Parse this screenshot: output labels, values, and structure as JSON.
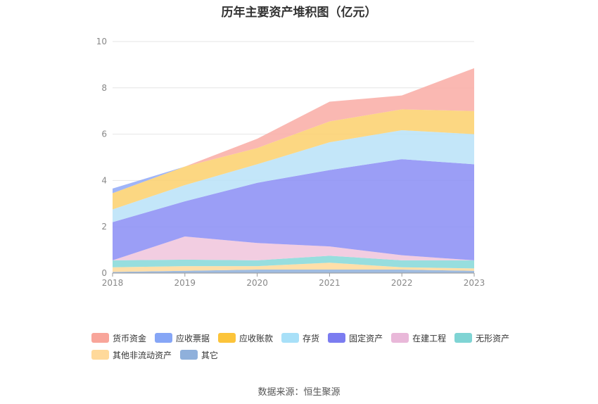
{
  "chart_data": {
    "type": "area",
    "stacked": true,
    "title": "历年主要资产堆积图（亿元）",
    "x": [
      "2018",
      "2019",
      "2020",
      "2021",
      "2022",
      "2023"
    ],
    "ylim": [
      0,
      10
    ],
    "yticks": [
      "0",
      "2",
      "4",
      "6",
      "8",
      "10"
    ],
    "grid": true,
    "legend_position": "bottom",
    "series": [
      {
        "name": "其它",
        "color": "#8fb0db",
        "values": [
          0.05,
          0.1,
          0.15,
          0.15,
          0.15,
          0.1
        ]
      },
      {
        "name": "其他非流动资产",
        "color": "#ffd99a",
        "values": [
          0.2,
          0.2,
          0.15,
          0.3,
          0.1,
          0.1
        ]
      },
      {
        "name": "无形资产",
        "color": "#85d8d8",
        "values": [
          0.3,
          0.28,
          0.25,
          0.3,
          0.3,
          0.35
        ]
      },
      {
        "name": "在建工程",
        "color": "#f0c4dc",
        "values": [
          0.0,
          1.0,
          0.75,
          0.4,
          0.22,
          0.0
        ]
      },
      {
        "name": "固定资产",
        "color": "#8a8df5",
        "values": [
          1.65,
          1.52,
          2.6,
          3.3,
          4.15,
          4.15
        ]
      },
      {
        "name": "存货",
        "color": "#b8e2f8",
        "values": [
          0.55,
          0.7,
          0.8,
          1.2,
          1.25,
          1.3
        ]
      },
      {
        "name": "应收账款",
        "color": "#fcd06c",
        "values": [
          0.7,
          0.8,
          0.7,
          0.9,
          0.9,
          1.0
        ]
      },
      {
        "name": "应收票据",
        "color": "#8fa8f7",
        "values": [
          0.2,
          0.0,
          0.0,
          0.0,
          0.0,
          0.0
        ]
      },
      {
        "name": "货币资金",
        "color": "#f9aca4",
        "values": [
          0.0,
          0.0,
          0.4,
          0.85,
          0.6,
          1.85
        ]
      }
    ]
  },
  "legend": {
    "items": [
      {
        "label": "货币资金",
        "color": "#f8a59a"
      },
      {
        "label": "应收票据",
        "color": "#86a6f6"
      },
      {
        "label": "应收账款",
        "color": "#fcc43a"
      },
      {
        "label": "存货",
        "color": "#a8e0f8"
      },
      {
        "label": "固定资产",
        "color": "#7b7cf0"
      },
      {
        "label": "在建工程",
        "color": "#e9b8d9"
      },
      {
        "label": "无形资产",
        "color": "#7fd4d4"
      },
      {
        "label": "其他非流动资产",
        "color": "#ffd99a"
      },
      {
        "label": "其它",
        "color": "#8fb0db"
      }
    ]
  },
  "source_text": "数据来源：恒生聚源"
}
